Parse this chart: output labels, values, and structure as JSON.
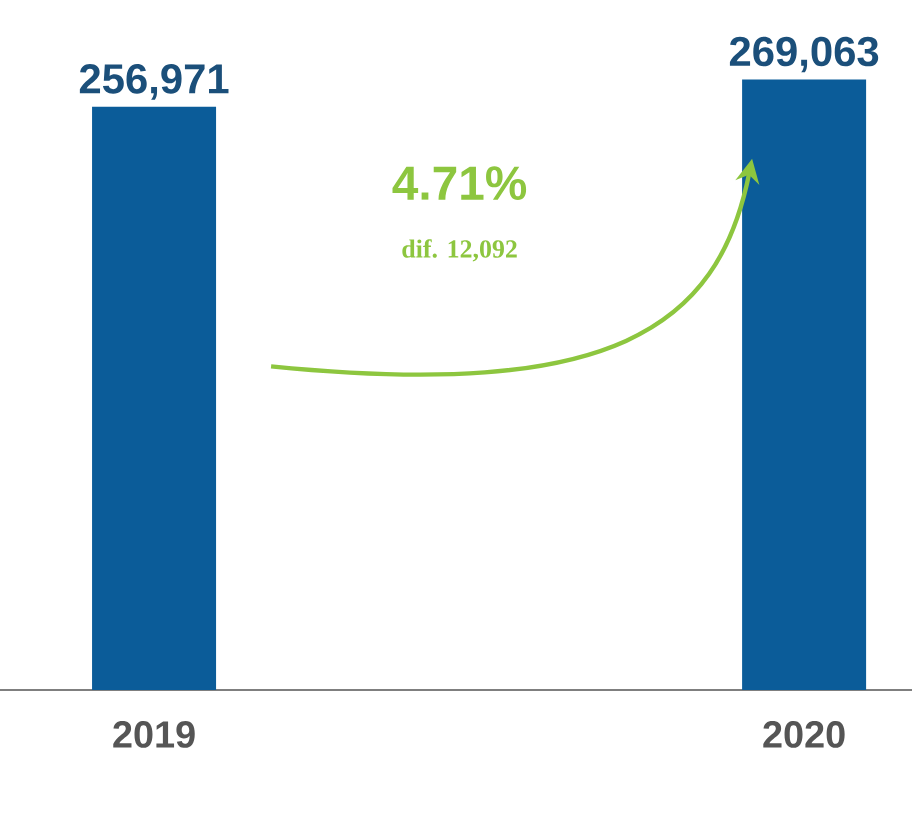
{
  "chart_data": {
    "type": "bar",
    "categories": [
      "2019",
      "2020"
    ],
    "values": [
      256971,
      269063
    ],
    "color": "#0b5c99",
    "value_labels": [
      "256,971",
      "269,063"
    ],
    "annotations": [
      "4.71%",
      "dif. 12,092"
    ]
  }
}
